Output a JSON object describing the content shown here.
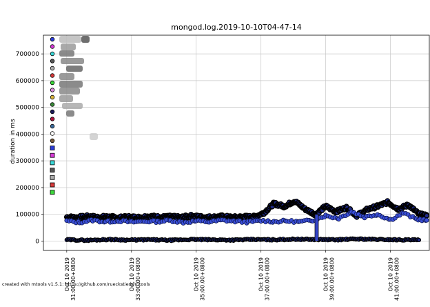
{
  "chart_data": {
    "type": "scatter",
    "title": "mongod.log.2019-10-10T04-47-14",
    "xlabel": "",
    "ylabel": "duration in ms",
    "ylim": [
      -35000,
      770000
    ],
    "yticks": [
      0,
      100000,
      200000,
      300000,
      400000,
      500000,
      600000,
      700000
    ],
    "ytick_labels": [
      "0",
      "100000",
      "200000",
      "300000",
      "400000",
      "500000",
      "600000",
      "700000"
    ],
    "grid": true,
    "legend_placement": "top-left",
    "xtick_labels": [
      [
        "Oct 10 2019",
        "31:00.00+0800"
      ],
      [
        "Oct 10 2019",
        "33:00.00+0800"
      ],
      [
        "Oct 10 2019",
        "35:00.00+0800"
      ],
      [
        "Oct 10 2019",
        "37:00.00+0800"
      ],
      [
        "Oct 10 2019",
        "39:00.00+0800"
      ],
      [
        "Oct 10 2019",
        "41:00.00+0800"
      ]
    ],
    "series": [
      {
        "x": [
          0.0,
          0.4,
          0.8,
          1.2,
          1.6,
          2.0,
          2.4,
          2.8,
          3.2,
          3.6,
          4.0,
          4.4,
          4.8,
          5.2,
          5.6,
          6.0,
          6.4,
          6.8,
          7.2,
          7.6,
          8.0,
          8.4,
          8.8,
          9.2,
          9.6,
          10.0,
          10.4,
          10.8,
          11.2,
          11.6,
          12.0,
          12.4,
          12.8,
          13.2,
          13.6,
          13.9
        ],
        "values": [
          90000,
          88000,
          92000,
          89000,
          91000,
          87000,
          90000,
          88000,
          93000,
          89000,
          91000,
          88000,
          94000,
          90000,
          89000,
          92000,
          88000,
          91000,
          90000,
          105000,
          140000,
          130000,
          150000,
          120000,
          100000,
          130000,
          110000,
          125000,
          95000,
          118000,
          130000,
          145000,
          120000,
          135000,
          100000,
          95000
        ]
      },
      {
        "x": [
          0.0,
          0.5,
          1.0,
          1.5,
          2.0,
          2.5,
          3.0,
          3.5,
          4.0,
          4.5,
          5.0,
          5.5,
          6.0,
          6.5,
          7.0,
          7.5,
          8.0,
          8.5,
          9.0,
          9.5,
          10.0,
          10.5,
          11.0,
          11.5,
          12.0,
          12.5,
          13.0,
          13.5,
          13.9
        ],
        "values": [
          75000,
          70000,
          78000,
          72000,
          76000,
          71000,
          74000,
          73000,
          77000,
          70000,
          75000,
          72000,
          78000,
          74000,
          71000,
          76000,
          73000,
          75000,
          72000,
          78000,
          95000,
          85000,
          110000,
          90000,
          100000,
          80000,
          105000,
          82000,
          78000
        ]
      },
      {
        "x": [
          0.0,
          0.8,
          1.6,
          2.4,
          3.2,
          4.0,
          4.8,
          5.6,
          6.4,
          7.2,
          8.0,
          8.8,
          9.6,
          10.4,
          11.2,
          12.0,
          12.8,
          13.6
        ],
        "values": [
          5000,
          3000,
          6000,
          4000,
          5000,
          3000,
          6000,
          5000,
          4000,
          6000,
          5000,
          7000,
          6000,
          5000,
          8000,
          6000,
          5000,
          4000
        ]
      },
      {
        "x": [
          9.65
        ],
        "values": [
          0
        ]
      }
    ],
    "legend_entries": 24
  },
  "footer": {
    "text": "created with mtools v1.5.1: https://github.com/rueckstiess/mtools"
  }
}
